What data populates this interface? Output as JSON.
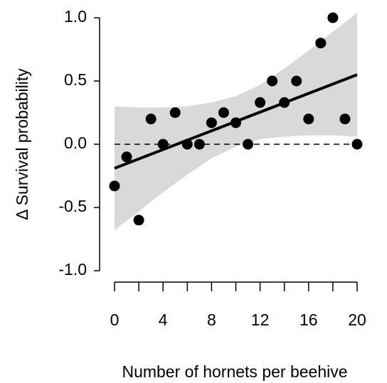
{
  "chart_data": {
    "type": "scatter",
    "xlabel": "Number of hornets per beehive",
    "ylabel": "Δ Survival probability",
    "x": [
      0,
      1,
      2,
      3,
      4,
      5,
      6,
      7,
      8,
      9,
      10,
      11,
      12,
      13,
      14,
      15,
      16,
      17,
      18,
      19,
      20
    ],
    "values": [
      -0.33,
      -0.1,
      -0.6,
      0.2,
      0,
      0.25,
      0,
      0,
      0.17,
      0.25,
      0.17,
      0,
      0.33,
      0.5,
      0.33,
      0.5,
      0.2,
      0.8,
      1.0,
      0.2,
      0
    ],
    "color": "#000000",
    "fit": {
      "x": [
        0,
        20
      ],
      "y": [
        -0.19,
        0.55
      ]
    },
    "band": {
      "x": [
        0,
        2,
        4,
        6,
        8,
        10,
        12,
        14,
        16,
        18,
        20
      ],
      "upper": [
        0.3,
        0.29,
        0.29,
        0.3,
        0.33,
        0.38,
        0.47,
        0.6,
        0.74,
        0.89,
        1.04
      ],
      "lower": [
        -0.68,
        -0.53,
        -0.38,
        -0.24,
        -0.11,
        -0.02,
        0.04,
        0.06,
        0.07,
        0.07,
        0.06
      ],
      "color": "#d9d9d9"
    },
    "reference_line": 0,
    "xlim": [
      0,
      20
    ],
    "ylim": [
      -1,
      1
    ],
    "xticks": [
      0,
      4,
      8,
      12,
      16,
      20
    ],
    "xminor_ticks": [
      2,
      6,
      10,
      14,
      18
    ],
    "yticks": [
      {
        "value": 1,
        "label": "1.0"
      },
      {
        "value": 0.5,
        "label": "0.5"
      },
      {
        "value": 0,
        "label": "0.0"
      },
      {
        "value": -0.5,
        "label": "-0.5"
      },
      {
        "value": -1,
        "label": "-1.0"
      }
    ]
  }
}
